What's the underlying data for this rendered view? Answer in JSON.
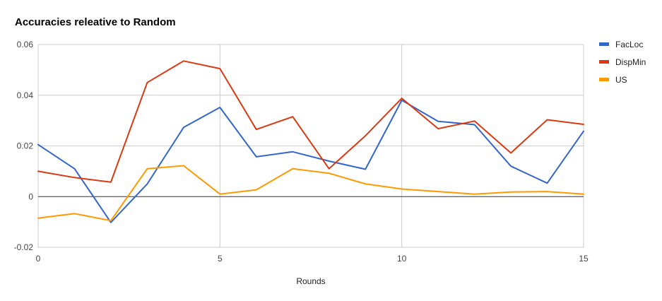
{
  "chart_data": {
    "type": "line",
    "title": "Accuracies releative to Random",
    "xlabel": "Rounds",
    "ylabel": "",
    "xlim": [
      0,
      15
    ],
    "ylim": [
      -0.02,
      0.06
    ],
    "x_ticks": [
      0,
      5,
      10,
      15
    ],
    "y_ticks": [
      -0.02,
      0,
      0.02,
      0.04,
      0.06
    ],
    "x_tick_labels": [
      "0",
      "5",
      "10",
      "15"
    ],
    "y_tick_labels": [
      "-0.02",
      "0",
      "0.02",
      "0.04",
      "0.06"
    ],
    "grid": true,
    "legend_position": "right",
    "x": [
      0,
      1,
      2,
      3,
      4,
      5,
      6,
      7,
      8,
      9,
      10,
      11,
      12,
      13,
      14,
      15
    ],
    "series": [
      {
        "name": "FacLoc",
        "color": "#3366cc",
        "values": [
          0.0205,
          0.011,
          -0.0102,
          0.005,
          0.0273,
          0.0352,
          0.0157,
          0.0177,
          0.014,
          0.0108,
          0.038,
          0.0297,
          0.0284,
          0.012,
          0.0053,
          0.0258
        ]
      },
      {
        "name": "DispMin",
        "color": "#dc3912",
        "values": [
          0.01,
          0.0075,
          0.0057,
          0.045,
          0.0535,
          0.0505,
          0.0265,
          0.0315,
          0.011,
          0.024,
          0.0388,
          0.0268,
          0.0298,
          0.0172,
          0.0303,
          0.0285
        ]
      },
      {
        "name": "US",
        "color": "#ff9900",
        "values": [
          -0.0085,
          -0.0067,
          -0.0095,
          0.011,
          0.0122,
          0.001,
          0.0027,
          0.011,
          0.0092,
          0.005,
          0.003,
          0.002,
          0.001,
          0.0018,
          0.002,
          0.001
        ]
      }
    ]
  }
}
